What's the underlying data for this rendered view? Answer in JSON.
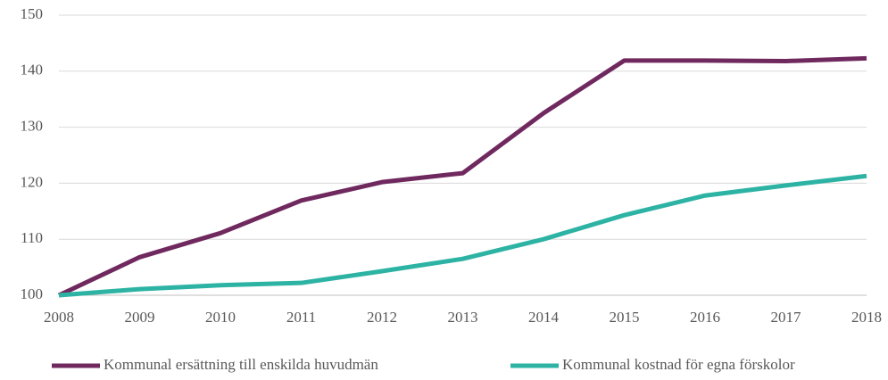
{
  "chart_data": {
    "type": "line",
    "categories": [
      "2008",
      "2009",
      "2010",
      "2011",
      "2012",
      "2013",
      "2014",
      "2015",
      "2016",
      "2017",
      "2018"
    ],
    "series": [
      {
        "name": "Kommunal ersättning till enskilda huvudmän",
        "color": "#70295f",
        "values": [
          100,
          106.8,
          111.1,
          116.9,
          120.2,
          121.8,
          132.5,
          141.9,
          141.9,
          141.8,
          142.3
        ]
      },
      {
        "name": "Kommunal kostnad för egna förskolor",
        "color": "#2db3a4",
        "values": [
          100,
          101.1,
          101.8,
          102.2,
          104.3,
          106.5,
          110.0,
          114.3,
          117.8,
          119.6,
          121.3
        ]
      }
    ],
    "ylim": [
      100,
      150
    ],
    "yticks": [
      100,
      110,
      120,
      130,
      140,
      150
    ],
    "grid": true
  }
}
